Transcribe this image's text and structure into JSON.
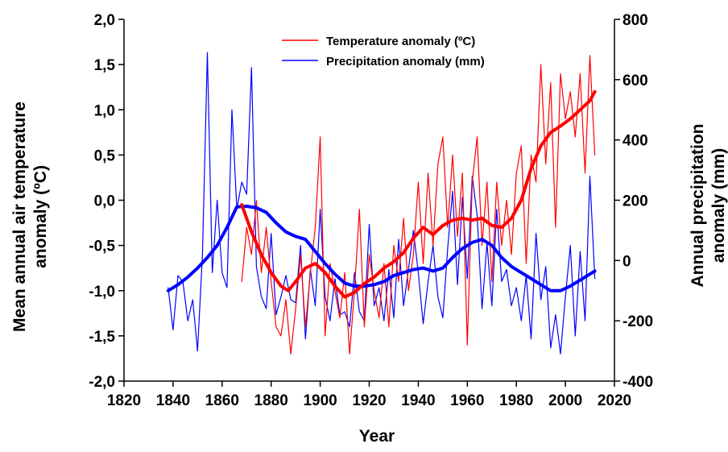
{
  "chart_data": {
    "type": "line",
    "xlabel": "Year",
    "ylabel_left": "Mean annual air temperature anomaly (ºC)",
    "ylabel_left_lines": [
      "Mean annual air temperature",
      "anomaly (ºC)"
    ],
    "ylabel_right": "Annual precipitation anomaly (mm)",
    "ylabel_right_lines": [
      "Annual precipitation",
      "anomaly (mm)"
    ],
    "xlim": [
      1820,
      2020
    ],
    "ylim_left": [
      -2.0,
      2.0
    ],
    "ylim_right": [
      -400,
      800
    ],
    "x_ticks": [
      "1820",
      "1840",
      "1860",
      "1880",
      "1900",
      "1920",
      "1940",
      "1960",
      "1980",
      "2000",
      "2020"
    ],
    "y_left_ticks": [
      "-2,0",
      "-1,5",
      "-1,0",
      "-0,5",
      "0,0",
      "0,5",
      "1,0",
      "1,5",
      "2,0"
    ],
    "y_right_ticks": [
      "-400",
      "-200",
      "0",
      "200",
      "400",
      "600",
      "800"
    ],
    "legend_position": "top-center",
    "grid": false,
    "colors": {
      "temperature": "#ff0000",
      "precipitation": "#0000ff"
    },
    "series": [
      {
        "name": "Temperature anomaly (ºC)",
        "axis": "left",
        "color": "#ff0000",
        "style": "thin",
        "x": [
          1868,
          1870,
          1872,
          1874,
          1876,
          1878,
          1880,
          1882,
          1884,
          1886,
          1888,
          1890,
          1892,
          1894,
          1896,
          1898,
          1900,
          1902,
          1904,
          1906,
          1908,
          1910,
          1912,
          1914,
          1916,
          1918,
          1920,
          1922,
          1924,
          1926,
          1928,
          1930,
          1932,
          1934,
          1936,
          1938,
          1940,
          1942,
          1944,
          1946,
          1948,
          1950,
          1952,
          1954,
          1956,
          1958,
          1960,
          1962,
          1964,
          1966,
          1968,
          1970,
          1972,
          1974,
          1976,
          1978,
          1980,
          1982,
          1984,
          1986,
          1988,
          1990,
          1992,
          1994,
          1996,
          1998,
          2000,
          2002,
          2004,
          2006,
          2008,
          2010,
          2012
        ],
        "y": [
          -0.9,
          -0.3,
          -0.6,
          0.0,
          -0.8,
          -0.3,
          -0.9,
          -1.4,
          -1.5,
          -1.1,
          -1.7,
          -1.2,
          -0.6,
          -1.4,
          -0.8,
          -0.3,
          0.7,
          -1.5,
          -0.7,
          -1.0,
          -1.3,
          -0.8,
          -1.7,
          -1.0,
          -0.1,
          -1.4,
          -0.6,
          -1.0,
          -1.3,
          -0.7,
          -1.4,
          -0.5,
          -0.9,
          -0.2,
          -1.0,
          -0.6,
          0.2,
          -0.7,
          0.3,
          -0.5,
          0.4,
          0.7,
          -0.3,
          0.5,
          -0.4,
          0.3,
          -1.6,
          0.2,
          0.7,
          -0.5,
          0.2,
          -0.9,
          0.2,
          -0.5,
          0.0,
          -0.6,
          0.3,
          0.6,
          -0.7,
          0.5,
          0.2,
          1.5,
          0.4,
          1.3,
          -0.3,
          1.4,
          0.9,
          1.2,
          0.7,
          1.4,
          0.3,
          1.6,
          0.5
        ]
      },
      {
        "name": "Precipitation anomaly (mm)",
        "axis": "right",
        "color": "#0000ff",
        "style": "thin",
        "x": [
          1838,
          1840,
          1842,
          1844,
          1846,
          1848,
          1850,
          1852,
          1854,
          1856,
          1858,
          1860,
          1862,
          1864,
          1866,
          1868,
          1870,
          1872,
          1874,
          1876,
          1878,
          1880,
          1882,
          1884,
          1886,
          1888,
          1890,
          1892,
          1894,
          1896,
          1898,
          1900,
          1902,
          1904,
          1906,
          1908,
          1910,
          1912,
          1914,
          1916,
          1918,
          1920,
          1922,
          1924,
          1926,
          1928,
          1930,
          1932,
          1934,
          1936,
          1938,
          1940,
          1942,
          1944,
          1946,
          1948,
          1950,
          1952,
          1954,
          1956,
          1958,
          1960,
          1962,
          1964,
          1966,
          1968,
          1970,
          1972,
          1974,
          1976,
          1978,
          1980,
          1982,
          1984,
          1986,
          1988,
          1990,
          1992,
          1994,
          1996,
          1998,
          2000,
          2002,
          2004,
          2006,
          2008,
          2010,
          2012
        ],
        "y": [
          -90,
          -230,
          -50,
          -70,
          -200,
          -130,
          -300,
          20,
          690,
          -40,
          200,
          -40,
          -90,
          500,
          170,
          260,
          220,
          640,
          -20,
          -120,
          -160,
          90,
          -180,
          -120,
          -50,
          -130,
          -140,
          50,
          -260,
          -30,
          -150,
          170,
          -120,
          -200,
          -60,
          -180,
          -170,
          -220,
          -40,
          -170,
          -200,
          120,
          -150,
          -90,
          -200,
          -30,
          -190,
          70,
          -150,
          -30,
          100,
          -40,
          -210,
          -70,
          50,
          -120,
          -190,
          40,
          230,
          -80,
          210,
          -60,
          280,
          150,
          -160,
          60,
          -150,
          170,
          -70,
          -30,
          -150,
          -90,
          -200,
          -50,
          -260,
          90,
          -130,
          -20,
          -290,
          -180,
          -310,
          -120,
          50,
          -250,
          30,
          -200,
          280,
          -60
        ]
      },
      {
        "name": "Temperature smoothed",
        "axis": "left",
        "color": "#ff0000",
        "style": "thick",
        "x": [
          1868,
          1872,
          1876,
          1880,
          1884,
          1887,
          1890,
          1894,
          1898,
          1902,
          1906,
          1910,
          1914,
          1918,
          1922,
          1926,
          1930,
          1934,
          1938,
          1942,
          1946,
          1950,
          1954,
          1958,
          1962,
          1966,
          1970,
          1974,
          1978,
          1982,
          1986,
          1990,
          1994,
          1998,
          2002,
          2006,
          2010,
          2012
        ],
        "y": [
          -0.05,
          -0.35,
          -0.6,
          -0.8,
          -0.95,
          -1.0,
          -0.9,
          -0.75,
          -0.7,
          -0.8,
          -0.95,
          -1.07,
          -1.02,
          -0.92,
          -0.85,
          -0.75,
          -0.68,
          -0.58,
          -0.42,
          -0.3,
          -0.38,
          -0.28,
          -0.22,
          -0.2,
          -0.22,
          -0.2,
          -0.28,
          -0.3,
          -0.2,
          0.0,
          0.35,
          0.6,
          0.75,
          0.82,
          0.9,
          1.0,
          1.1,
          1.2
        ]
      },
      {
        "name": "Precipitation smoothed",
        "axis": "right",
        "color": "#0000ff",
        "style": "thick",
        "x": [
          1838,
          1842,
          1846,
          1850,
          1854,
          1858,
          1862,
          1866,
          1870,
          1874,
          1878,
          1882,
          1886,
          1890,
          1894,
          1898,
          1902,
          1906,
          1910,
          1914,
          1918,
          1922,
          1926,
          1930,
          1934,
          1938,
          1942,
          1946,
          1950,
          1954,
          1958,
          1962,
          1966,
          1970,
          1974,
          1978,
          1982,
          1986,
          1990,
          1994,
          1998,
          2002,
          2006,
          2010,
          2012
        ],
        "y": [
          -100,
          -80,
          -55,
          -25,
          10,
          50,
          110,
          178,
          180,
          175,
          160,
          125,
          95,
          80,
          70,
          30,
          -10,
          -45,
          -75,
          -85,
          -85,
          -80,
          -70,
          -50,
          -40,
          -30,
          -25,
          -35,
          -25,
          10,
          40,
          60,
          70,
          50,
          10,
          -20,
          -40,
          -60,
          -80,
          -100,
          -100,
          -85,
          -65,
          -45,
          -35
        ]
      }
    ]
  }
}
